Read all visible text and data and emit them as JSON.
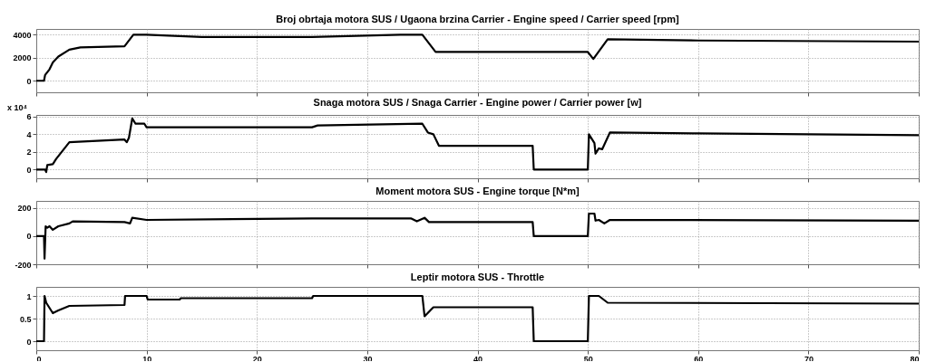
{
  "chart_data": [
    {
      "type": "line",
      "title": "Broj obrtaja motora SUS / Ugaona brzina Carrier - Engine speed / Carrier speed [rpm]",
      "color": "#000000",
      "line_style": "solid",
      "grid": true,
      "tick_labels": "y",
      "x": [
        0,
        0.7,
        0.8,
        1.2,
        1.5,
        2,
        3,
        4,
        8,
        8.8,
        10,
        15,
        25,
        33,
        35,
        36.2,
        50,
        50.5,
        51.8,
        60,
        80
      ],
      "values": [
        0,
        0,
        500,
        1000,
        1600,
        2100,
        2700,
        2900,
        3000,
        4000,
        4000,
        3800,
        3800,
        4000,
        4000,
        2500,
        2500,
        1900,
        3600,
        3500,
        3400
      ],
      "xlim": [
        0,
        80
      ],
      "xticks": [
        0,
        10,
        20,
        30,
        40,
        50,
        60,
        70,
        80
      ],
      "ylim": [
        -1000,
        4500
      ],
      "yticks": [
        0,
        2000,
        4000
      ]
    },
    {
      "type": "line",
      "title": "Snaga motora SUS / Snaga Carrier - Engine power / Carrier power [w]",
      "color": "#000000",
      "line_style": "solid",
      "grid": true,
      "tick_labels": "y",
      "annotations": [
        "x 10⁴"
      ],
      "x": [
        0,
        0.8,
        0.9,
        1,
        1.5,
        1.8,
        3,
        8,
        8.2,
        8.4,
        8.7,
        9,
        9.8,
        10,
        25,
        25.5,
        35,
        35.5,
        36,
        36.5,
        45,
        45.1,
        50,
        50.1,
        50.6,
        50.7,
        51,
        51.3,
        52,
        60,
        80
      ],
      "values": [
        0,
        0,
        -0.3,
        0.5,
        0.6,
        1.2,
        3.1,
        3.4,
        3.1,
        3.6,
        5.8,
        5.2,
        5.2,
        4.8,
        4.8,
        5,
        5.2,
        4.2,
        4,
        2.7,
        2.7,
        0,
        0,
        4,
        3,
        1.8,
        2.4,
        2.3,
        4.2,
        4.1,
        3.9
      ],
      "xlim": [
        0,
        80
      ],
      "xticks": [
        0,
        10,
        20,
        30,
        40,
        50,
        60,
        70,
        80
      ],
      "ylim": [
        -1,
        6.2
      ],
      "yticks": [
        0,
        2,
        4,
        6
      ]
    },
    {
      "type": "line",
      "title": "Moment motora SUS - Engine torque [N*m]",
      "color": "#000000",
      "line_style": "solid",
      "grid": true,
      "tick_labels": "y",
      "x": [
        0,
        0.7,
        0.75,
        0.85,
        1,
        1.2,
        1.5,
        2,
        3,
        3.3,
        8,
        8.5,
        8.7,
        10,
        25,
        34,
        34.5,
        35.2,
        35.6,
        45,
        45.1,
        50,
        50.1,
        50.6,
        50.7,
        51,
        51.5,
        52,
        80
      ],
      "values": [
        0,
        0,
        -160,
        70,
        60,
        70,
        45,
        70,
        90,
        105,
        100,
        90,
        130,
        115,
        125,
        125,
        105,
        130,
        100,
        100,
        0,
        0,
        160,
        160,
        110,
        115,
        90,
        115,
        110
      ],
      "xlim": [
        0,
        80
      ],
      "xticks": [
        0,
        10,
        20,
        30,
        40,
        50,
        60,
        70,
        80
      ],
      "ylim": [
        -200,
        250
      ],
      "yticks": [
        -200,
        0,
        200
      ]
    },
    {
      "type": "line",
      "title": "Leptir motora SUS - Throttle",
      "color": "#000000",
      "line_style": "solid",
      "grid": true,
      "x": [
        0,
        0.7,
        0.75,
        0.9,
        1.5,
        2,
        3,
        8,
        8.05,
        10,
        10.1,
        13,
        13.1,
        25,
        25.1,
        35,
        35.2,
        36,
        45,
        45.1,
        50,
        50.1,
        51,
        51.8,
        80
      ],
      "values": [
        0,
        0,
        1,
        0.85,
        0.62,
        0.68,
        0.78,
        0.8,
        1,
        1,
        0.92,
        0.92,
        0.95,
        0.95,
        1,
        1,
        0.55,
        0.75,
        0.75,
        0,
        0,
        1,
        1,
        0.85,
        0.83
      ],
      "xlim": [
        0,
        80
      ],
      "xticks": [
        0,
        10,
        20,
        30,
        40,
        50,
        60,
        70,
        80
      ],
      "ylim": [
        -0.2,
        1.2
      ],
      "yticks": [
        0,
        0.5,
        1
      ]
    }
  ]
}
